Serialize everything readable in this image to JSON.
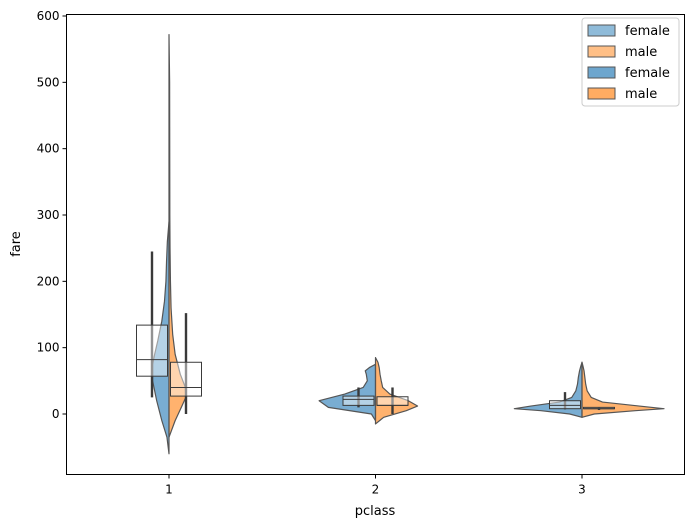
{
  "chart_data": {
    "type": "violin",
    "title": "",
    "xlabel": "pclass",
    "ylabel": "fare",
    "categories": [
      "1",
      "2",
      "3"
    ],
    "yticks": [
      "0",
      "100",
      "200",
      "300",
      "400",
      "500",
      "600"
    ],
    "ylim": [
      -90,
      605
    ],
    "grid": false,
    "legend_position": "top-right",
    "legend": [
      {
        "label": "female",
        "color": "#1f77b4",
        "kind": "box"
      },
      {
        "label": "male",
        "color": "#ff7f0e",
        "kind": "box"
      },
      {
        "label": "female",
        "color": "#1f77b4",
        "kind": "violin"
      },
      {
        "label": "male",
        "color": "#ff7f0e",
        "kind": "violin"
      }
    ],
    "colors": {
      "female": "#1f77b4",
      "male": "#ff7f0e"
    },
    "boxes": [
      {
        "category": "1",
        "group": "female",
        "q1": 57,
        "median": 82,
        "q3": 134,
        "whisker_low": 25,
        "whisker_high": 245
      },
      {
        "category": "1",
        "group": "male",
        "q1": 27,
        "median": 40,
        "q3": 78,
        "whisker_low": 0,
        "whisker_high": 152
      },
      {
        "category": "2",
        "group": "female",
        "q1": 13,
        "median": 22,
        "q3": 27,
        "whisker_low": 10,
        "whisker_high": 40
      },
      {
        "category": "2",
        "group": "male",
        "q1": 13,
        "median": 13,
        "q3": 26,
        "whisker_low": 0,
        "whisker_high": 40
      },
      {
        "category": "3",
        "group": "female",
        "q1": 8,
        "median": 13,
        "q3": 20,
        "whisker_low": 7,
        "whisker_high": 33
      },
      {
        "category": "3",
        "group": "male",
        "q1": 8,
        "median": 8,
        "q3": 10,
        "whisker_low": 6,
        "whisker_high": 10
      }
    ],
    "violins": [
      {
        "category": "1",
        "female": {
          "y": [
            -60,
            -35,
            -10,
            20,
            50,
            75,
            90,
            110,
            140,
            170,
            200,
            230,
            260,
            290
          ],
          "w": [
            0,
            0.1,
            0.35,
            0.6,
            0.8,
            0.8,
            0.7,
            0.55,
            0.35,
            0.22,
            0.15,
            0.12,
            0.08,
            0
          ]
        },
        "male": {
          "y": [
            -35,
            -10,
            10,
            25,
            40,
            60,
            90,
            120,
            160,
            200,
            250,
            300,
            400,
            500,
            572
          ],
          "w": [
            0,
            0.3,
            0.6,
            0.82,
            0.8,
            0.55,
            0.3,
            0.18,
            0.1,
            0.07,
            0.05,
            0.04,
            0.035,
            0.03,
            0
          ]
        }
      },
      {
        "category": "2",
        "female": {
          "y": [
            -10,
            0,
            10,
            20,
            30,
            40,
            50,
            60,
            65,
            70,
            75
          ],
          "w": [
            0,
            0.2,
            2.3,
            2.75,
            1.5,
            0.6,
            0.4,
            0.45,
            0.5,
            0.3,
            0
          ]
        },
        "male": {
          "y": [
            -15,
            -5,
            5,
            12,
            20,
            30,
            40,
            50,
            60,
            70,
            78,
            85
          ],
          "w": [
            0,
            0.4,
            1.5,
            2.05,
            1.6,
            0.7,
            0.35,
            0.28,
            0.22,
            0.18,
            0.12,
            0
          ]
        }
      },
      {
        "category": "3",
        "female": {
          "y": [
            -5,
            0,
            5,
            8,
            12,
            18,
            25,
            35,
            45,
            55,
            65,
            72,
            78
          ],
          "w": [
            0,
            0.6,
            2.0,
            3.3,
            2.5,
            1.1,
            0.5,
            0.3,
            0.22,
            0.18,
            0.12,
            0.06,
            0
          ]
        },
        "male": {
          "y": [
            -5,
            0,
            5,
            8,
            12,
            18,
            25,
            35,
            45,
            55,
            65,
            72,
            78
          ],
          "w": [
            0,
            0.6,
            2.6,
            4.0,
            2.8,
            1.0,
            0.45,
            0.25,
            0.18,
            0.14,
            0.1,
            0.05,
            0
          ]
        }
      }
    ]
  }
}
